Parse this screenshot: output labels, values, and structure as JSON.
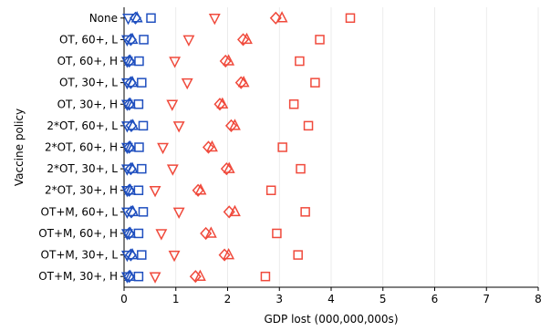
{
  "chart_data": {
    "type": "scatter",
    "xlabel": "GDP lost (000,000,000s)",
    "ylabel": "Vaccine policy",
    "xlim": [
      0,
      8
    ],
    "x_ticks": [
      "0",
      "1",
      "2",
      "3",
      "4",
      "5",
      "6",
      "7",
      "8"
    ],
    "categories": [
      "None",
      "OT, 60+, L",
      "OT, 60+, H",
      "OT, 30+, L",
      "OT, 30+, H",
      "2*OT, 60+, L",
      "2*OT, 60+, H",
      "2*OT, 30+, L",
      "2*OT, 30+, H",
      "OT+M, 60+, L",
      "OT+M, 60+, H",
      "OT+M, 30+, L",
      "OT+M, 30+, H"
    ],
    "grid": "vertical",
    "legend": "none",
    "series": [
      {
        "color": "#1f4fbf",
        "marker": "triangle-down",
        "values": [
          0.08,
          0.06,
          0.06,
          0.06,
          0.06,
          0.06,
          0.06,
          0.06,
          0.06,
          0.06,
          0.06,
          0.06,
          0.06
        ]
      },
      {
        "color": "#1f4fbf",
        "marker": "diamond",
        "values": [
          0.22,
          0.13,
          0.1,
          0.13,
          0.1,
          0.14,
          0.1,
          0.13,
          0.1,
          0.14,
          0.1,
          0.13,
          0.1
        ]
      },
      {
        "color": "#1f4fbf",
        "marker": "triangle-up",
        "values": [
          0.25,
          0.16,
          0.12,
          0.16,
          0.12,
          0.17,
          0.12,
          0.16,
          0.12,
          0.17,
          0.12,
          0.16,
          0.12
        ]
      },
      {
        "color": "#1f4fbf",
        "marker": "square",
        "values": [
          0.52,
          0.38,
          0.29,
          0.34,
          0.28,
          0.37,
          0.29,
          0.34,
          0.28,
          0.37,
          0.28,
          0.34,
          0.28
        ]
      },
      {
        "color": "#f04a3c",
        "marker": "triangle-down",
        "values": [
          1.75,
          1.25,
          0.98,
          1.22,
          0.93,
          1.06,
          0.75,
          0.94,
          0.6,
          1.06,
          0.72,
          0.97,
          0.6
        ]
      },
      {
        "color": "#f04a3c",
        "marker": "diamond",
        "values": [
          2.93,
          2.3,
          1.96,
          2.26,
          1.85,
          2.07,
          1.63,
          1.98,
          1.43,
          2.03,
          1.58,
          1.94,
          1.38
        ]
      },
      {
        "color": "#f04a3c",
        "marker": "triangle-up",
        "values": [
          3.05,
          2.37,
          2.02,
          2.31,
          1.9,
          2.14,
          1.7,
          2.03,
          1.48,
          2.14,
          1.68,
          2.02,
          1.47
        ]
      },
      {
        "color": "#f04a3c",
        "marker": "square",
        "values": [
          4.37,
          3.78,
          3.39,
          3.69,
          3.28,
          3.56,
          3.06,
          3.41,
          2.84,
          3.5,
          2.95,
          3.36,
          2.73
        ]
      }
    ]
  }
}
